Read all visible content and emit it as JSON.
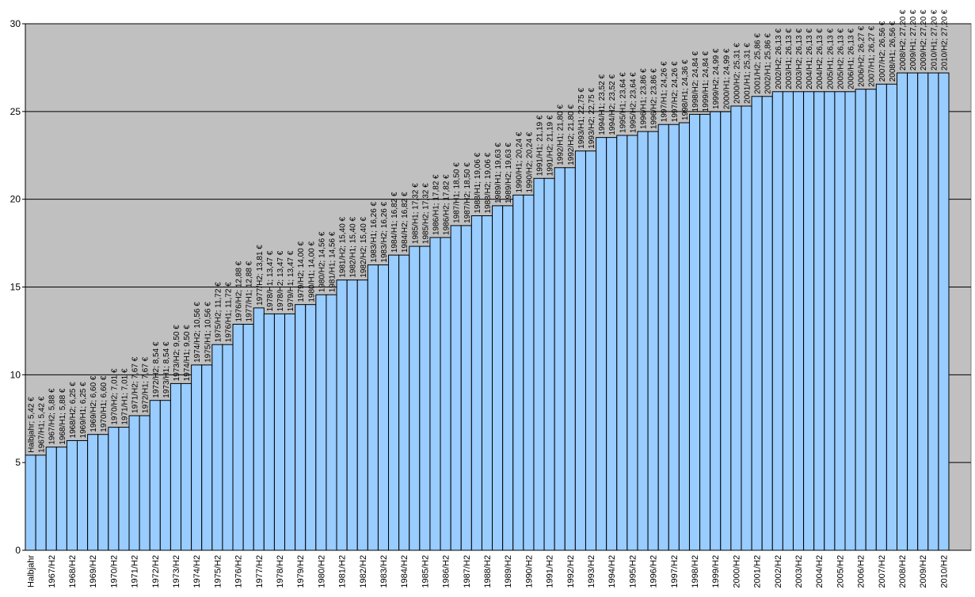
{
  "chart_data": {
    "type": "bar",
    "color": "#99ccff",
    "grid": true,
    "ylim": [
      0,
      30
    ],
    "yticks": [
      0,
      5,
      10,
      15,
      20,
      25,
      30
    ],
    "categories": [
      "Halbjahr",
      null,
      "1967/H2",
      null,
      "1968/H2",
      null,
      "1969/H2",
      null,
      "1970/H2",
      null,
      "1971/H2",
      null,
      "1972/H2",
      null,
      "1973/H2",
      null,
      "1974/H2",
      null,
      "1975/H2",
      null,
      "1976/H2",
      null,
      "1977/H2",
      null,
      "1978/H2",
      null,
      "1979/H2",
      null,
      "1980/H2",
      null,
      "1981/H2",
      null,
      "1982/H2",
      null,
      "1983/H2",
      null,
      "1984/H2",
      null,
      "1985/H2",
      null,
      "1986/H2",
      null,
      "1987/H2",
      null,
      "1988/H2",
      null,
      "1989/H2",
      null,
      "1990/H2",
      null,
      "1991/H2",
      null,
      "1992/H2",
      null,
      "1993/H2",
      null,
      "1994/H2",
      null,
      "1995/H2",
      null,
      "1996/H2",
      null,
      "1997/H2",
      null,
      "1998/H2",
      null,
      "1999/H2",
      null,
      "2000/H2",
      null,
      "2001/H2",
      null,
      "2002/H2",
      null,
      "2003/H2",
      null,
      "2004/H2",
      null,
      "2005/H2",
      null,
      "2006/H2",
      null,
      "2007/H2",
      null,
      "2008/H2",
      null,
      "2009/H2",
      null,
      "2010/H2"
    ],
    "values": [
      5.42,
      5.42,
      5.88,
      5.88,
      6.25,
      6.25,
      6.6,
      6.6,
      7.01,
      7.01,
      7.67,
      7.67,
      8.54,
      8.54,
      9.5,
      9.5,
      10.56,
      10.56,
      11.72,
      11.72,
      12.88,
      12.88,
      13.81,
      13.47,
      13.47,
      13.47,
      14.0,
      14.0,
      14.56,
      14.56,
      15.4,
      15.4,
      15.4,
      16.26,
      16.26,
      16.82,
      16.82,
      17.32,
      17.32,
      17.82,
      17.82,
      18.5,
      18.5,
      19.06,
      19.06,
      19.63,
      19.63,
      20.24,
      20.24,
      21.19,
      21.19,
      21.8,
      21.8,
      22.75,
      22.75,
      23.52,
      23.52,
      23.64,
      23.64,
      23.86,
      23.86,
      24.26,
      24.26,
      24.36,
      24.84,
      24.84,
      24.99,
      24.99,
      25.31,
      25.31,
      25.86,
      25.86,
      26.13,
      26.13,
      26.13,
      26.13,
      26.13,
      26.13,
      26.13,
      26.13,
      26.27,
      26.27,
      26.56,
      26.56,
      27.2,
      27.2,
      27.2,
      27.2,
      27.2
    ],
    "value_labels": [
      "Halbjahr; 5,42 €",
      "1967/H1; 5,42 €",
      "1967/H2; 5,88 €",
      "1968/H1; 5,88 €",
      "1968/H2; 6,25 €",
      "1969/H1; 6,25 €",
      "1969/H2; 6,60 €",
      "1970/H1; 6,60 €",
      "1970/H2; 7,01 €",
      "1971/H1; 7,01 €",
      "1971/H2; 7,67 €",
      "1972/H1; 7,67 €",
      "1972/H2; 8,54 €",
      "1973/H1; 8,54 €",
      "1973/H2; 9,50 €",
      "1974/H1; 9,50 €",
      "1974/H2; 10,56 €",
      "1975/H1; 10,56 €",
      "1975/H2; 11,72 €",
      "1976/H1; 11,72 €",
      "1976/H2; 12,88 €",
      "1977/H1; 12,88 €",
      "1977/H2; 13,81 €",
      "1978/H1; 13,47 €",
      "1978/H2; 13,47 €",
      "1979/H1; 13,47 €",
      "1979/H2; 14,00 €",
      "1980/H1; 14,00 €",
      "1980/H2; 14,56 €",
      "1981/H1; 14,56 €",
      "1981/H2; 15,40 €",
      "1982/H1; 15,40 €",
      "1982/H2; 15,40 €",
      "1983/H1; 16,26 €",
      "1983/H2; 16,26 €",
      "1984/H1; 16,82 €",
      "1984/H2; 16,82 €",
      "1985/H1; 17,32 €",
      "1985/H2; 17,32 €",
      "1986/H1; 17,82 €",
      "1986/H2; 17,82 €",
      "1987/H1; 18,50 €",
      "1987/H2; 18,50 €",
      "1988/H1; 19,06 €",
      "1988/H2; 19,06 €",
      "1989/H1; 19,63 €",
      "1989/H2; 19,63 €",
      "1990/H1; 20,24 €",
      "1990/H2; 20,24 €",
      "1991/H1; 21,19 €",
      "1991/H2; 21,19 €",
      "1992/H1; 21,80 €",
      "1992/H2; 21,80 €",
      "1993/H1; 22,75 €",
      "1993/H2; 22,75 €",
      "1994/H1; 23,52 €",
      "1994/H2; 23,52 €",
      "1995/H1; 23,64 €",
      "1995/H2; 23,64 €",
      "1996/H1; 23,86 €",
      "1996/H2; 23,86 €",
      "1997/H1; 24,26 €",
      "1997/H2; 24,26 €",
      "1998/H1; 24,36 €",
      "1998/H2; 24,84 €",
      "1999/H1; 24,84 €",
      "1999/H2; 24,99 €",
      "2000/H1; 24,99 €",
      "2000/H2; 25,31 €",
      "2001/H1; 25,31 €",
      "2001/H2; 25,86 €",
      "2002/H1; 25,86 €",
      "2002/H2; 26,13 €",
      "2003/H1; 26,13 €",
      "2003/H2; 26,13 €",
      "2004/H1; 26,13 €",
      "2004/H2; 26,13 €",
      "2005/H1; 26,13 €",
      "2005/H2; 26,13 €",
      "2006/H1; 26,13 €",
      "2006/H2; 26,27 €",
      "2007/H1; 26,27 €",
      "2007/H2; 26,56 €",
      "2008/H1; 26,56 €",
      "2008/H2; 27,20 €",
      "2009/H1; 27,20 €",
      "2009/H2; 27,20 €",
      "2010/H1; 27,20 €",
      "2010/H2; 27,20 €"
    ]
  }
}
